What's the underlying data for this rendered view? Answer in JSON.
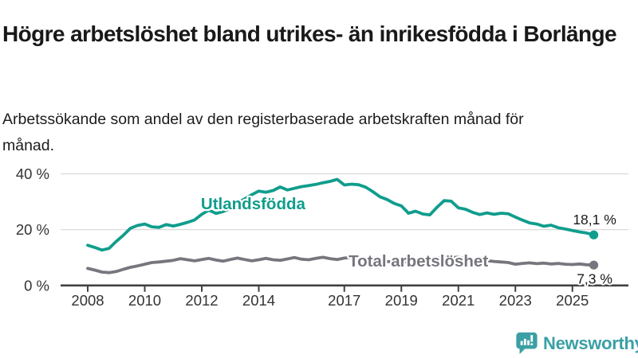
{
  "chart_data": {
    "type": "line",
    "title": "Högre arbetslöshet bland utrikes- än inrikesfödda i Borlänge",
    "subtitle": "Arbetssökande som andel av den registerbaserade arbetskraften månad för månad.",
    "xlabel": "",
    "ylabel": "",
    "unit": "%",
    "grid": "horizontal",
    "legend_position": "inline-series-labels",
    "x_start_year": 2008,
    "x_step_years": 0.25,
    "x_end_year": 2025.75,
    "ylim": [
      0,
      43
    ],
    "x_tick_years": [
      2008,
      2010,
      2012,
      2014,
      2017,
      2019,
      2021,
      2023,
      2025
    ],
    "y_ticks": [
      {
        "value": 0,
        "label": "0 %"
      },
      {
        "value": 20,
        "label": "20 %"
      },
      {
        "value": 40,
        "label": "40 %"
      }
    ],
    "colors": {
      "grid": "#dadada",
      "axis": "#404040",
      "tick_text": "#333333",
      "value_text": "#1a1a1a"
    },
    "series": [
      {
        "id": "utlandsfodda",
        "name": "Utlandsfödda",
        "color": "#109d8c",
        "end_label": "18,1 %",
        "end_label_position": "above",
        "label_anchor": {
          "year": 2011.97,
          "value": 27.3
        },
        "values": [
          14.4,
          13.6,
          12.7,
          13.3,
          15.8,
          18.0,
          20.5,
          21.5,
          22.0,
          21.0,
          20.8,
          21.8,
          21.3,
          21.9,
          22.6,
          23.5,
          25.5,
          27.0,
          25.8,
          26.5,
          27.6,
          29.5,
          31.0,
          32.5,
          33.8,
          33.4,
          34.0,
          35.3,
          34.2,
          34.8,
          35.4,
          35.8,
          36.2,
          36.8,
          37.3,
          38.0,
          36.0,
          36.3,
          36.1,
          35.2,
          33.6,
          31.8,
          30.8,
          29.4,
          28.5,
          25.9,
          26.6,
          25.6,
          25.3,
          28.0,
          30.4,
          30.2,
          27.8,
          27.3,
          26.2,
          25.4,
          26.0,
          25.5,
          25.9,
          25.7,
          24.5,
          23.4,
          22.4,
          22.0,
          21.2,
          21.6,
          20.7,
          20.2,
          19.7,
          19.2,
          18.8,
          18.1
        ]
      },
      {
        "id": "total",
        "name": "Total arbetslöshet",
        "color": "#76767e",
        "end_label": "7,3 %",
        "end_label_position": "below",
        "label_anchor": {
          "year": 2017.15,
          "value": 6.8
        },
        "values": [
          6.1,
          5.5,
          4.8,
          4.6,
          5.0,
          5.8,
          6.5,
          7.0,
          7.6,
          8.2,
          8.4,
          8.7,
          9.0,
          9.6,
          9.2,
          8.8,
          9.3,
          9.7,
          9.1,
          8.7,
          9.3,
          9.8,
          9.3,
          8.8,
          9.2,
          9.7,
          9.2,
          9.0,
          9.5,
          10.0,
          9.4,
          9.2,
          9.7,
          10.1,
          9.6,
          9.3,
          9.8,
          10.0,
          9.4,
          9.1,
          9.3,
          9.0,
          8.6,
          8.4,
          8.6,
          8.3,
          8.1,
          8.3,
          8.6,
          9.6,
          10.3,
          10.0,
          10.1,
          9.6,
          9.1,
          8.7,
          8.9,
          8.6,
          8.4,
          8.2,
          7.6,
          7.9,
          8.1,
          7.8,
          8.0,
          7.7,
          7.9,
          7.6,
          7.5,
          7.7,
          7.4,
          7.3
        ]
      }
    ]
  },
  "branding": {
    "logo_text": "Newsworthy",
    "logo_color": "#3aa0a5",
    "icon": "bar-chart-speech-bubble-icon"
  }
}
